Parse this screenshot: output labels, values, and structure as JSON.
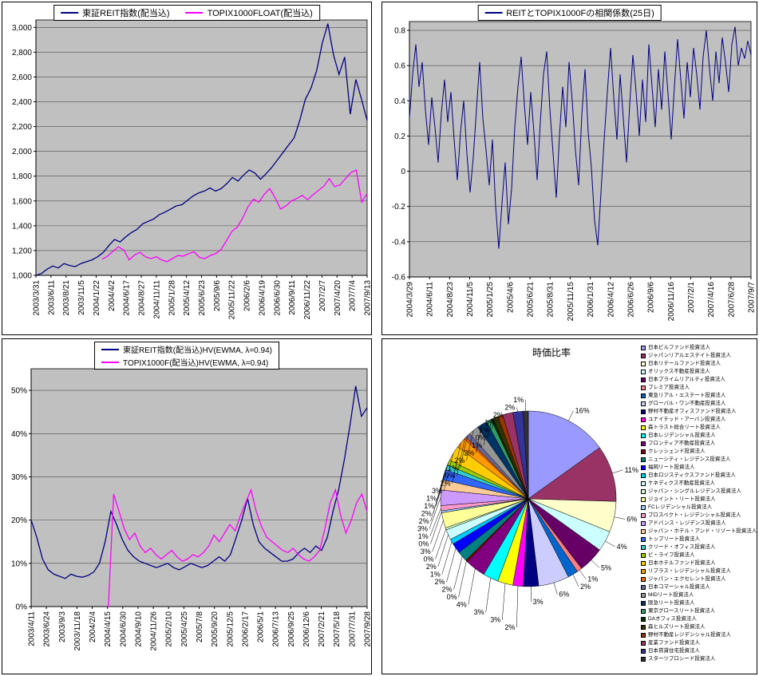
{
  "colors": {
    "plot_bg": "#C0C0C0",
    "grid": "#4d4d4d",
    "axis": "#000000",
    "reit_line": "#000080",
    "topix_line": "#FF00FF"
  },
  "chart_data": [
    {
      "type": "line",
      "name": "index-comparison",
      "legend_labels": [
        "東証REIT指数(配当込)",
        "TOPIX1000FLOAT(配当込)"
      ],
      "ylim": [
        1000,
        3060
      ],
      "yticks": [
        1000,
        1200,
        1400,
        1600,
        1800,
        2000,
        2200,
        2400,
        2600,
        2800,
        3000
      ],
      "ytick_labels": [
        "1,000",
        "1,200",
        "1,400",
        "1,600",
        "1,800",
        "2,000",
        "2,200",
        "2,400",
        "2,600",
        "2,800",
        "3,000"
      ],
      "xticks": [
        "2003/3/31",
        "2003/6/11",
        "2003/8/21",
        "2003/11/5",
        "2004/1/22",
        "2004/4/2",
        "2004/6/17",
        "2004/8/27",
        "2004/11/11",
        "2005/1/28",
        "2005/4/12",
        "2005/6/23",
        "2005/9/6",
        "2005/11/22",
        "2006/2/6",
        "2006/4/19",
        "2006/6/30",
        "2006/9/11",
        "2006/11/22",
        "2007/2/7",
        "2007/4/20",
        "2007/7/4",
        "2007/9/13"
      ],
      "grid": true,
      "series": [
        {
          "name": "東証REIT指数(配当込)",
          "color": "#000080",
          "start": 0,
          "values": [
            1000,
            1015,
            1050,
            1075,
            1060,
            1095,
            1080,
            1070,
            1095,
            1110,
            1125,
            1150,
            1185,
            1240,
            1290,
            1270,
            1310,
            1345,
            1370,
            1415,
            1435,
            1455,
            1490,
            1510,
            1535,
            1560,
            1570,
            1605,
            1640,
            1665,
            1680,
            1705,
            1680,
            1700,
            1740,
            1790,
            1760,
            1810,
            1850,
            1825,
            1775,
            1820,
            1870,
            1930,
            1990,
            2050,
            2110,
            2250,
            2420,
            2510,
            2650,
            2870,
            3030,
            2780,
            2620,
            2760,
            2300,
            2580,
            2420,
            2250
          ]
        },
        {
          "name": "TOPIX1000FLOAT(配当込)",
          "color": "#FF00FF",
          "start": 0.2,
          "values": [
            1130,
            1155,
            1195,
            1230,
            1205,
            1125,
            1165,
            1185,
            1150,
            1135,
            1150,
            1125,
            1110,
            1135,
            1160,
            1155,
            1175,
            1190,
            1145,
            1135,
            1160,
            1175,
            1210,
            1280,
            1355,
            1390,
            1465,
            1555,
            1615,
            1590,
            1655,
            1700,
            1625,
            1535,
            1560,
            1600,
            1620,
            1645,
            1610,
            1650,
            1685,
            1720,
            1780,
            1715,
            1730,
            1780,
            1830,
            1850,
            1590,
            1660
          ]
        }
      ]
    },
    {
      "type": "line",
      "name": "correlation",
      "legend_labels": [
        "REITとTOPIX1000Fの相関係数(25日)"
      ],
      "ylim": [
        -0.6,
        0.85
      ],
      "yticks": [
        -0.6,
        -0.4,
        -0.2,
        0,
        0.2,
        0.4,
        0.6,
        0.8
      ],
      "ytick_labels": [
        "-0.6",
        "-0.4",
        "-0.2",
        "0",
        "0.2",
        "0.4",
        "0.6",
        "0.8"
      ],
      "xticks": [
        "2004/3/29",
        "2004/6/11",
        "2004/8/23",
        "2004/11/5",
        "2005/1/25",
        "2005/4/6",
        "2005/6/21",
        "2005/8/31",
        "2005/11/15",
        "2006/1/31",
        "2006/4/12",
        "2006/6/26",
        "2006/9/6",
        "2006/11/16",
        "2007/2/1",
        "2007/4/16",
        "2007/6/28",
        "2007/9/7"
      ],
      "grid": true,
      "series": [
        {
          "name": "REITとTOPIX1000Fの相関係数(25日)",
          "color": "#000080",
          "start": 0,
          "width": 1,
          "values": [
            0.3,
            0.55,
            0.72,
            0.48,
            0.62,
            0.35,
            0.15,
            0.42,
            0.25,
            0.05,
            0.33,
            0.52,
            0.28,
            0.45,
            0.18,
            -0.05,
            0.22,
            0.4,
            0.1,
            -0.12,
            0.08,
            0.35,
            0.62,
            0.3,
            0.12,
            -0.08,
            0.18,
            -0.2,
            -0.44,
            -0.18,
            0.05,
            -0.3,
            -0.1,
            0.25,
            0.48,
            0.65,
            0.38,
            0.15,
            0.45,
            0.22,
            -0.05,
            0.28,
            0.55,
            0.68,
            0.35,
            0.1,
            -0.15,
            0.2,
            0.48,
            0.25,
            0.62,
            0.4,
            0.12,
            -0.08,
            0.32,
            0.58,
            0.22,
            0.02,
            -0.28,
            -0.42,
            -0.12,
            0.18,
            0.45,
            0.7,
            0.42,
            0.18,
            0.55,
            0.3,
            0.05,
            0.38,
            0.66,
            0.45,
            0.2,
            0.52,
            0.28,
            0.72,
            0.48,
            0.25,
            0.58,
            0.35,
            0.68,
            0.44,
            0.18,
            0.48,
            0.75,
            0.52,
            0.3,
            0.62,
            0.42,
            0.7,
            0.55,
            0.35,
            0.65,
            0.8,
            0.58,
            0.4,
            0.68,
            0.5,
            0.76,
            0.62,
            0.45,
            0.72,
            0.82,
            0.6,
            0.7,
            0.64,
            0.74,
            0.66
          ]
        }
      ]
    },
    {
      "type": "line",
      "name": "historical-volatility",
      "legend_labels": [
        "東証REIT指数(配当込)HV(EWMA, λ=0.94)",
        "TOPIX1000F(配当込)HV(EWMA, λ=0.94)"
      ],
      "ylim": [
        0,
        55
      ],
      "yticks": [
        0,
        10,
        20,
        30,
        40,
        50
      ],
      "ytick_labels": [
        "0%",
        "10%",
        "20%",
        "30%",
        "40%",
        "50%"
      ],
      "xticks": [
        "2003/4/11",
        "2003/6/24",
        "2003/9/3",
        "2003/11/18",
        "2004/2/4",
        "2004/4/15",
        "2004/6/30",
        "2004/9/10",
        "2004/11/26",
        "2005/2/10",
        "2005/4/25",
        "2005/7/8",
        "2005/9/20",
        "2005/12/5",
        "2006/2/17",
        "2006/5/1",
        "2006/7/13",
        "2006/9/25",
        "2006/12/6",
        "2007/2/21",
        "2007/5/18",
        "2007/7/31",
        "2007/9/28"
      ],
      "grid": true,
      "series": [
        {
          "name": "東証REIT指数(配当込)HV(EWMA, λ=0.94)",
          "color": "#000080",
          "start": 0,
          "values": [
            20,
            16,
            11,
            8.5,
            7.5,
            7,
            6.5,
            7.5,
            7,
            6.8,
            7.2,
            8,
            10,
            15,
            22,
            19,
            15.5,
            13,
            11.5,
            10.5,
            10,
            9.5,
            9,
            9.5,
            10,
            9,
            8.5,
            9.2,
            10,
            9.5,
            9,
            9.5,
            10.5,
            11.5,
            10.5,
            12,
            16,
            20,
            25,
            19,
            15,
            13.5,
            12.5,
            11.5,
            10.5,
            10.5,
            11,
            12.5,
            13.5,
            12.5,
            14,
            13,
            16,
            22,
            27,
            34,
            42,
            51,
            44,
            46
          ]
        },
        {
          "name": "TOPIX1000F(配当込)HV(EWMA, λ=0.94)",
          "color": "#FF00FF",
          "start": 0.23,
          "values": [
            0,
            26,
            22,
            18,
            15.5,
            17,
            14,
            12.5,
            13.5,
            12,
            11,
            12,
            13,
            11.5,
            10.5,
            11,
            12,
            11.5,
            12.5,
            14,
            16.5,
            15,
            17,
            19,
            17.5,
            21,
            24,
            27,
            22,
            18.5,
            16,
            15,
            14,
            13,
            12.5,
            13.5,
            12,
            11,
            10.5,
            11.5,
            13,
            18,
            24,
            27,
            21,
            17,
            20,
            24,
            26,
            22
          ]
        }
      ]
    },
    {
      "type": "pie",
      "name": "market-cap-ratio",
      "title": "時価比率",
      "labels": [
        "日本ビルファンド投資法人",
        "ジャパンリアルエステイト投資法人",
        "日本リテールファンド投資法人",
        "オリックス不動産投資法人",
        "日本プライムリアルティ投資法人",
        "プレミア投資法人",
        "東急リアル・エステート投資法人",
        "グローバル・ワン不動産投資法人",
        "野村不動産オフィスファンド投資法人",
        "ユナイテッド・アーバン投資法人",
        "森トラスト総合リート投資法人",
        "日本レジデンシャル投資法人",
        "フロンティア不動産投資法人",
        "クレッシェンド投資法人",
        "ニューシティ・レジデンス投資法人",
        "福岡リート投資法人",
        "日本ロジスティクスファンド投資法人",
        "ケネディクス不動産投資法人",
        "ジャパン・シングルレジデンス投資法人",
        "ジョイント・リート投資法人",
        "FCレジデンシャル投資法人",
        "プロスペクト・レジデンシャル投資法人",
        "アドバンス・レジデンス投資法人",
        "ジャパン・ホテル・アンド・リゾート投資法人",
        "トップリート投資法人",
        "クリード・オフィス投資法人",
        "ビ・ライフ投資法人",
        "日本ホテルファンド投資法人",
        "リプラス・レジデンシャル投資法人",
        "ジャパン・エクセレント投資法人",
        "日本コマーシャル投資法人",
        "MIDリート投資法人",
        "阪急リート投資法人",
        "東京グロースリート投資法人",
        "DAオフィス投資法人",
        "森ヒルズリート投資法人",
        "野村不動産レジデンシャル投資法人",
        "産業ファンド投資法人",
        "日本賃貸住宅投資法人",
        "スターツプロシード投資法人"
      ],
      "values": [
        16,
        11,
        6,
        4,
        5,
        1,
        2,
        6,
        3,
        2,
        3,
        3,
        4,
        0.4,
        2,
        2,
        1,
        2,
        0.4,
        3,
        0.4,
        1,
        3,
        2,
        2,
        1,
        1,
        3,
        2,
        0.4,
        1,
        2,
        2,
        1,
        0.4,
        1,
        1,
        2,
        2,
        1
      ],
      "colors": [
        "#9999FF",
        "#993366",
        "#FFFFCC",
        "#CCFFFF",
        "#660066",
        "#FF8080",
        "#0066CC",
        "#CCCCFF",
        "#000080",
        "#FF00FF",
        "#FFFF00",
        "#00FFFF",
        "#800080",
        "#800000",
        "#008080",
        "#0000FF",
        "#00CCFF",
        "#CCFFFF",
        "#CCFFCC",
        "#FFFF99",
        "#99CCFF",
        "#FF99CC",
        "#CC99FF",
        "#FFCC99",
        "#3366FF",
        "#33CCCC",
        "#99CC00",
        "#FFCC00",
        "#FF9900",
        "#FF6600",
        "#666699",
        "#969696",
        "#003366",
        "#339966",
        "#003300",
        "#333300",
        "#993300",
        "#993366",
        "#333399",
        "#333333"
      ]
    }
  ]
}
